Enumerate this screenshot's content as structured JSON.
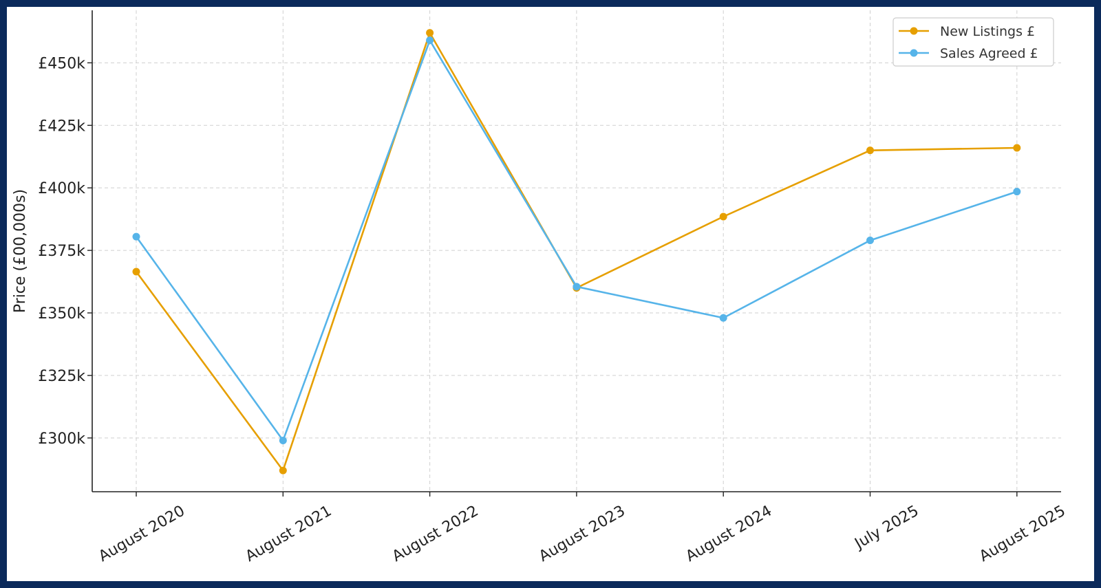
{
  "chart_data": {
    "type": "line",
    "title": "",
    "xlabel": "",
    "ylabel": "Price (£00,000s)",
    "categories": [
      "August 2020",
      "August 2021",
      "August 2022",
      "August 2023",
      "August 2024",
      "July 2025",
      "August 2025"
    ],
    "y_ticks": [
      300000,
      325000,
      350000,
      375000,
      400000,
      425000,
      450000
    ],
    "y_tick_labels": [
      "£300k",
      "£325k",
      "£350k",
      "£375k",
      "£400k",
      "£425k",
      "£450k"
    ],
    "ylim": [
      278500,
      471000
    ],
    "grid": true,
    "legend_position": "top-right",
    "series": [
      {
        "name": "New Listings £",
        "color": "#E69F00",
        "values": [
          366500,
          287000,
          462000,
          360000,
          388500,
          415000,
          416000
        ]
      },
      {
        "name": "Sales Agreed £",
        "color": "#56B4E9",
        "values": [
          380500,
          299000,
          459000,
          360500,
          348000,
          379000,
          398500
        ]
      }
    ]
  }
}
